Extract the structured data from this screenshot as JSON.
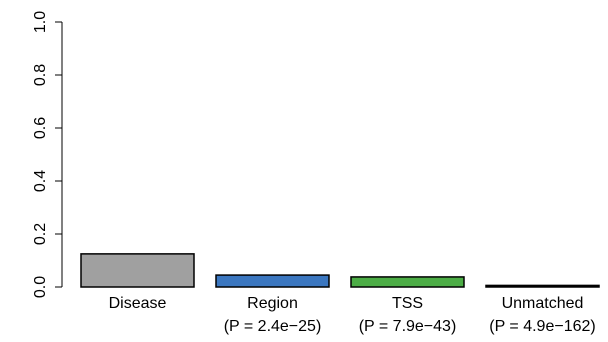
{
  "chart_data": {
    "type": "bar",
    "categories": [
      "Disease",
      "Region",
      "TSS",
      "Unmatched"
    ],
    "sublabels": [
      "",
      "(P = 2.4e−25)",
      "(P = 7.9e−43)",
      "(P = 4.9e−162)"
    ],
    "values": [
      0.125,
      0.045,
      0.038,
      0.006
    ],
    "colors": [
      "#a0a0a0",
      "#3b77c0",
      "#4cad46",
      "#000000"
    ],
    "ylim": [
      0,
      1
    ],
    "yticks": [
      "0.0",
      "0.2",
      "0.4",
      "0.6",
      "0.8",
      "1.0"
    ],
    "title": "",
    "xlabel": "",
    "ylabel": "",
    "grid": false
  }
}
